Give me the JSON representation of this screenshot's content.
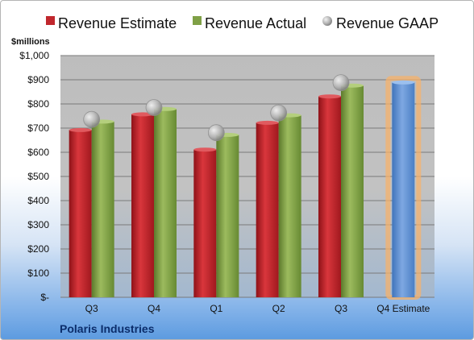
{
  "company": "Polaris Industries",
  "unit_label": "$millions",
  "colors": {
    "estimate": "#c0272d",
    "actual": "#7fa046",
    "gaap": "#a9a9a9",
    "q4_estimate": "#5b8fd2",
    "q4_glow": "#f6b26b"
  },
  "chart_data": {
    "type": "bar",
    "categories": [
      "Q3",
      "Q4",
      "Q1",
      "Q2",
      "Q3",
      "Q4 Estimate"
    ],
    "ylim": [
      0,
      1000
    ],
    "yticks": [
      0,
      100,
      200,
      300,
      400,
      500,
      600,
      700,
      800,
      900,
      1000
    ],
    "ytick_labels": [
      "$-",
      "$100",
      "$200",
      "$300",
      "$400",
      "$500",
      "$600",
      "$700",
      "$800",
      "$900",
      "$1,000"
    ],
    "ylabel": "$millions",
    "grid": true,
    "legend_position": "top",
    "series": [
      {
        "name": "Revenue Estimate",
        "kind": "bar",
        "values": [
          692,
          757,
          611,
          722,
          831,
          889
        ]
      },
      {
        "name": "Revenue Actual",
        "kind": "bar",
        "values": [
          727,
          779,
          672,
          753,
          876,
          null
        ]
      },
      {
        "name": "Revenue GAAP",
        "kind": "marker",
        "values": [
          736,
          785,
          681,
          763,
          888,
          null
        ]
      }
    ]
  }
}
